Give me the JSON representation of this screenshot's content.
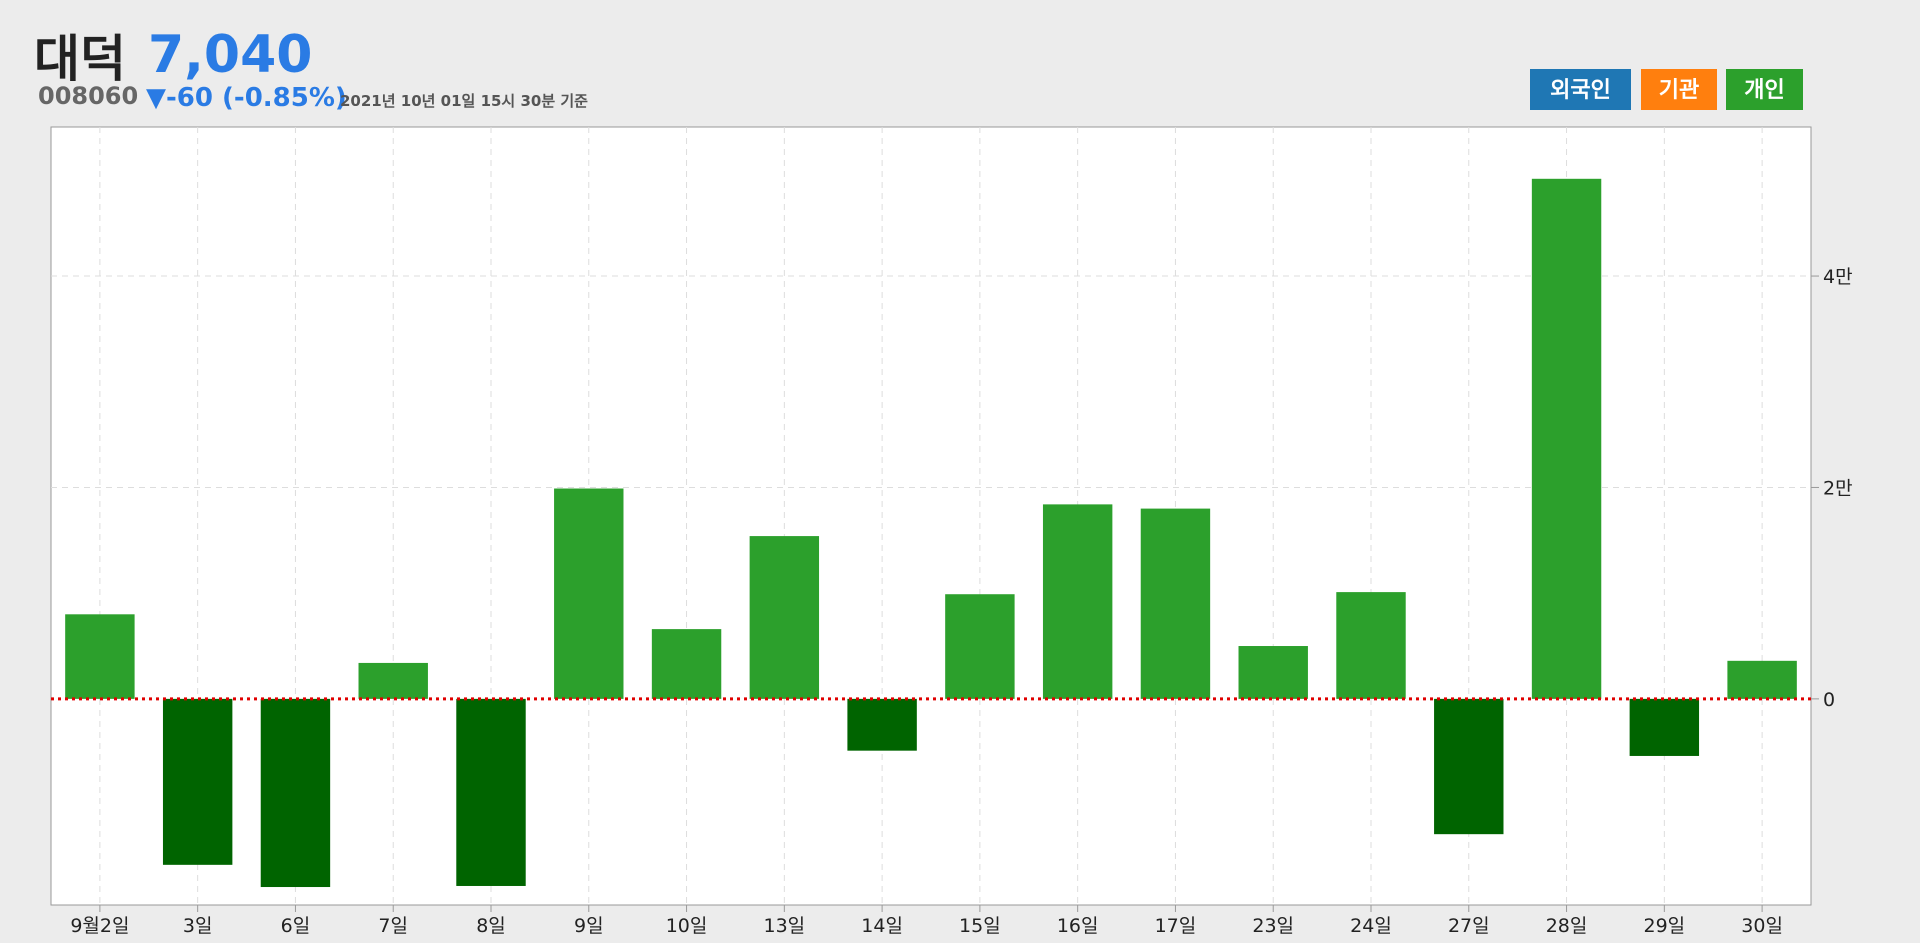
{
  "header": {
    "name": "대덕",
    "price": "7,040",
    "code": "008060",
    "change": "▼-60 (-0.85%)",
    "timestamp": "2021년 10년 01일 15시 30분 기준"
  },
  "legend": [
    {
      "name": "외국인",
      "color": "#1f77b4"
    },
    {
      "name": "기관",
      "color": "#ff7f0e"
    },
    {
      "name": "개인",
      "color": "#2ca02c"
    }
  ],
  "chart_data": {
    "type": "bar",
    "categories": [
      "9월2일",
      "3일",
      "6일",
      "7일",
      "8일",
      "9일",
      "10일",
      "13일",
      "14일",
      "15일",
      "16일",
      "17일",
      "23일",
      "24일",
      "27일",
      "28일",
      "29일",
      "30일"
    ],
    "series": [
      {
        "name": "개인",
        "color": "#2ca02c",
        "negative_color": "#006400",
        "values": [
          8000,
          -15700,
          -17800,
          3400,
          -17700,
          19900,
          6600,
          15400,
          -4900,
          9900,
          18400,
          18000,
          5000,
          10100,
          -12800,
          49200,
          -5400,
          3600
        ]
      }
    ],
    "ylim": [
      -19500,
      54100
    ],
    "yticks": [
      {
        "value": 0,
        "label": "0"
      },
      {
        "value": 20000,
        "label": "2만"
      },
      {
        "value": 40000,
        "label": "4만"
      }
    ],
    "grid": true,
    "zero_line_color": "#e00000"
  }
}
